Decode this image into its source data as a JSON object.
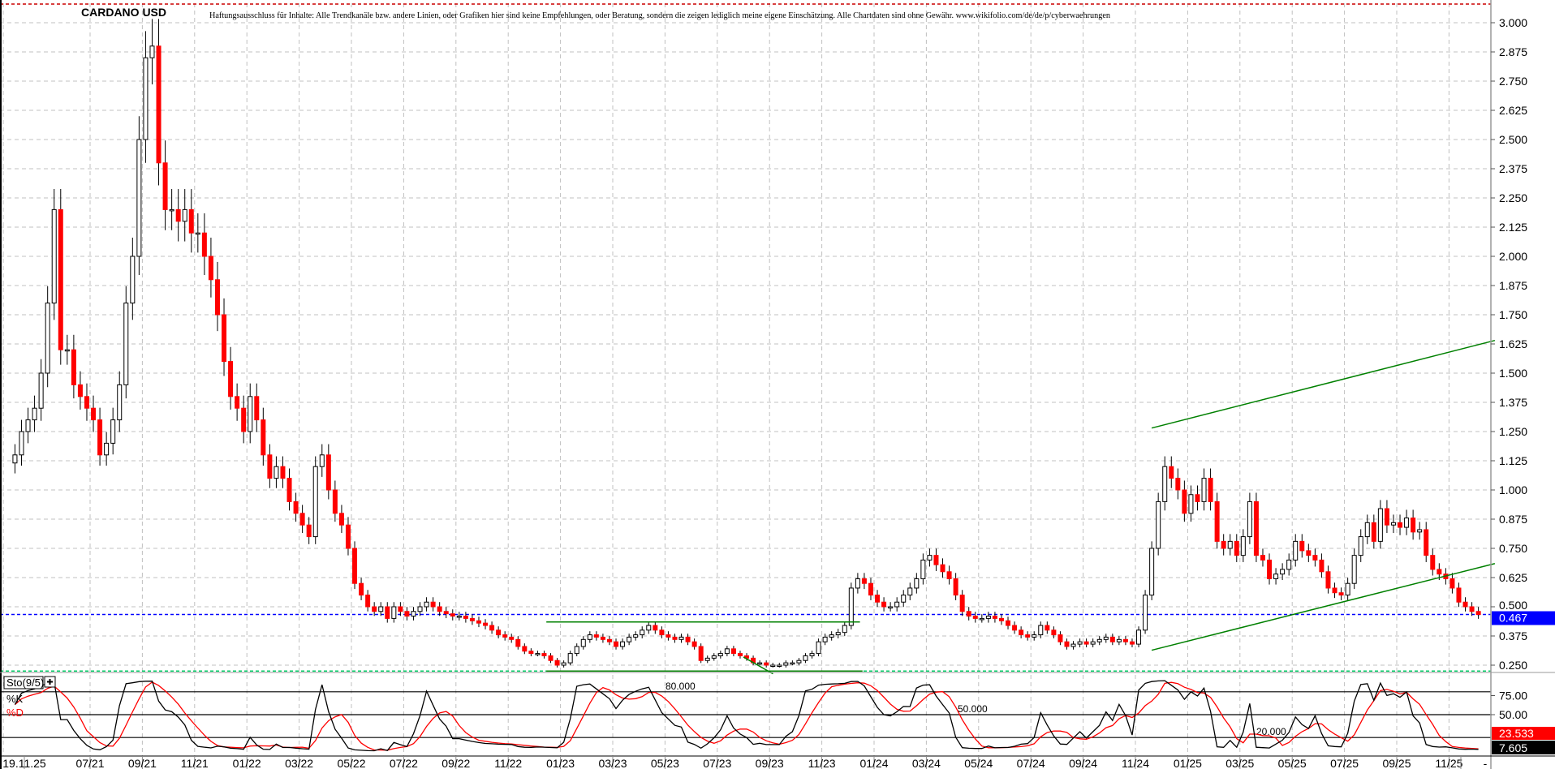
{
  "chart_data": {
    "type": "candlestick",
    "title": "CARDANO USD",
    "disclaimer": "Haftungsausschluss für Inhalte: Alle Trendkanäle bzw. andere Linien, oder Grafiken hier sind keine Empfehlungen, oder Beratung, sondern die zeigen lediglich meine eigene Einschätzung. Alle Chartdaten sind ohne Gewähr.  www.wikifolio.com/de/de/p/cyberwaehrungen",
    "ylim": [
      0.22,
      3.08
    ],
    "y_ticks": [
      "3.000",
      "2.875",
      "2.750",
      "2.625",
      "2.500",
      "2.375",
      "2.250",
      "2.125",
      "2.000",
      "1.875",
      "1.750",
      "1.625",
      "1.500",
      "1.375",
      "1.250",
      "1.125",
      "1.000",
      "0.875",
      "0.750",
      "0.625",
      "0.500",
      "0.375",
      "0.250"
    ],
    "x_ticks": [
      "19.11.25",
      "07/21",
      "09/21",
      "11/21",
      "01/22",
      "03/22",
      "05/22",
      "07/22",
      "09/22",
      "11/22",
      "01/23",
      "03/23",
      "05/23",
      "07/23",
      "09/23",
      "11/23",
      "01/24",
      "03/24",
      "05/24",
      "07/24",
      "09/24",
      "11/24",
      "01/25",
      "03/25",
      "05/25",
      "07/25",
      "09/25",
      "11/25"
    ],
    "x_tick_months": [
      "2021-05",
      "2021-07",
      "2021-09",
      "2021-11",
      "2022-01",
      "2022-03",
      "2022-05",
      "2022-07",
      "2022-09",
      "2022-11",
      "2023-01",
      "2023-03",
      "2023-05",
      "2023-07",
      "2023-09",
      "2023-11",
      "2024-01",
      "2024-03",
      "2024-05",
      "2024-07",
      "2024-09",
      "2024-11",
      "2025-01",
      "2025-03",
      "2025-05",
      "2025-07",
      "2025-09",
      "2025-11"
    ],
    "axis_dash": "-",
    "grid": true,
    "colors": {
      "up_body": "#ffffff",
      "down_body": "#ff0000",
      "outline": "#000000",
      "trendline": "#008000",
      "last_price": "#0000ff",
      "stoch_k": "#000000",
      "stoch_d": "#ff0000",
      "high_marker": "#cc0000",
      "low_marker": "#00cc66"
    },
    "last_price": {
      "value": 0.467,
      "label": "0.467"
    },
    "high_marker": 3.08,
    "low_marker": 0.225,
    "monthly_weekly_closes": [
      {
        "month": "2021-04",
        "closes": [
          1.15,
          1.25,
          1.3,
          1.35
        ]
      },
      {
        "month": "2021-05",
        "closes": [
          1.5,
          1.8,
          2.2,
          1.6
        ]
      },
      {
        "month": "2021-06",
        "closes": [
          1.6,
          1.45,
          1.4,
          1.35
        ]
      },
      {
        "month": "2021-07",
        "closes": [
          1.3,
          1.15,
          1.2,
          1.3
        ]
      },
      {
        "month": "2021-08",
        "closes": [
          1.45,
          1.8,
          2.0,
          2.5
        ]
      },
      {
        "month": "2021-09",
        "closes": [
          2.85,
          2.9,
          2.4,
          2.2
        ]
      },
      {
        "month": "2021-10",
        "closes": [
          2.2,
          2.15,
          2.2,
          2.1
        ]
      },
      {
        "month": "2021-11",
        "closes": [
          2.1,
          2.0,
          1.9,
          1.75
        ]
      },
      {
        "month": "2021-12",
        "closes": [
          1.55,
          1.4,
          1.35,
          1.25
        ]
      },
      {
        "month": "2022-01",
        "closes": [
          1.4,
          1.3,
          1.15,
          1.05
        ]
      },
      {
        "month": "2022-02",
        "closes": [
          1.1,
          1.05,
          0.95,
          0.9
        ]
      },
      {
        "month": "2022-03",
        "closes": [
          0.85,
          0.8,
          1.1,
          1.15
        ]
      },
      {
        "month": "2022-04",
        "closes": [
          1.0,
          0.9,
          0.85,
          0.75
        ]
      },
      {
        "month": "2022-05",
        "closes": [
          0.6,
          0.55,
          0.5,
          0.48
        ]
      },
      {
        "month": "2022-06",
        "closes": [
          0.5,
          0.45,
          0.5,
          0.48
        ]
      },
      {
        "month": "2022-07",
        "closes": [
          0.46,
          0.48,
          0.5,
          0.52
        ]
      },
      {
        "month": "2022-08",
        "closes": [
          0.5,
          0.48,
          0.47,
          0.46
        ]
      },
      {
        "month": "2022-09",
        "closes": [
          0.46,
          0.45,
          0.44,
          0.43
        ]
      },
      {
        "month": "2022-10",
        "closes": [
          0.42,
          0.4,
          0.38,
          0.37
        ]
      },
      {
        "month": "2022-11",
        "closes": [
          0.36,
          0.33,
          0.31,
          0.3
        ]
      },
      {
        "month": "2022-12",
        "closes": [
          0.3,
          0.29,
          0.27,
          0.25
        ]
      },
      {
        "month": "2023-01",
        "closes": [
          0.26,
          0.3,
          0.33,
          0.36
        ]
      },
      {
        "month": "2023-02",
        "closes": [
          0.38,
          0.37,
          0.36,
          0.35
        ]
      },
      {
        "month": "2023-03",
        "closes": [
          0.33,
          0.35,
          0.37,
          0.38
        ]
      },
      {
        "month": "2023-04",
        "closes": [
          0.4,
          0.42,
          0.4,
          0.38
        ]
      },
      {
        "month": "2023-05",
        "closes": [
          0.37,
          0.36,
          0.37,
          0.35
        ]
      },
      {
        "month": "2023-06",
        "closes": [
          0.33,
          0.27,
          0.28,
          0.29
        ]
      },
      {
        "month": "2023-07",
        "closes": [
          0.3,
          0.32,
          0.3,
          0.29
        ]
      },
      {
        "month": "2023-08",
        "closes": [
          0.28,
          0.26,
          0.26,
          0.25
        ]
      },
      {
        "month": "2023-09",
        "closes": [
          0.25,
          0.25,
          0.26,
          0.26
        ]
      },
      {
        "month": "2023-10",
        "closes": [
          0.27,
          0.29,
          0.3,
          0.35
        ]
      },
      {
        "month": "2023-11",
        "closes": [
          0.37,
          0.38,
          0.39,
          0.42
        ]
      },
      {
        "month": "2023-12",
        "closes": [
          0.58,
          0.62,
          0.6,
          0.55
        ]
      },
      {
        "month": "2024-01",
        "closes": [
          0.52,
          0.5,
          0.5,
          0.52
        ]
      },
      {
        "month": "2024-02",
        "closes": [
          0.55,
          0.58,
          0.62,
          0.7
        ]
      },
      {
        "month": "2024-03",
        "closes": [
          0.72,
          0.68,
          0.65,
          0.62
        ]
      },
      {
        "month": "2024-04",
        "closes": [
          0.55,
          0.48,
          0.46,
          0.45
        ]
      },
      {
        "month": "2024-05",
        "closes": [
          0.45,
          0.46,
          0.45,
          0.44
        ]
      },
      {
        "month": "2024-06",
        "closes": [
          0.42,
          0.4,
          0.38,
          0.37
        ]
      },
      {
        "month": "2024-07",
        "closes": [
          0.38,
          0.42,
          0.4,
          0.38
        ]
      },
      {
        "month": "2024-08",
        "closes": [
          0.35,
          0.33,
          0.34,
          0.35
        ]
      },
      {
        "month": "2024-09",
        "closes": [
          0.34,
          0.35,
          0.36,
          0.37
        ]
      },
      {
        "month": "2024-10",
        "closes": [
          0.35,
          0.36,
          0.35,
          0.34
        ]
      },
      {
        "month": "2024-11",
        "closes": [
          0.4,
          0.55,
          0.75,
          0.95
        ]
      },
      {
        "month": "2024-12",
        "closes": [
          1.1,
          1.05,
          1.0,
          0.9
        ]
      },
      {
        "month": "2025-01",
        "closes": [
          0.98,
          0.95,
          1.05,
          0.95
        ]
      },
      {
        "month": "2025-02",
        "closes": [
          0.78,
          0.75,
          0.78,
          0.72
        ]
      },
      {
        "month": "2025-03",
        "closes": [
          0.8,
          0.95,
          0.72,
          0.7
        ]
      },
      {
        "month": "2025-04",
        "closes": [
          0.62,
          0.64,
          0.66,
          0.7
        ]
      },
      {
        "month": "2025-05",
        "closes": [
          0.78,
          0.74,
          0.72,
          0.7
        ]
      },
      {
        "month": "2025-06",
        "closes": [
          0.65,
          0.58,
          0.56,
          0.55
        ]
      },
      {
        "month": "2025-07",
        "closes": [
          0.6,
          0.72,
          0.8,
          0.86
        ]
      },
      {
        "month": "2025-08",
        "closes": [
          0.78,
          0.92,
          0.85,
          0.86
        ]
      },
      {
        "month": "2025-09",
        "closes": [
          0.84,
          0.88,
          0.82,
          0.83
        ]
      },
      {
        "month": "2025-10",
        "closes": [
          0.72,
          0.66,
          0.64,
          0.62
        ]
      },
      {
        "month": "2025-11",
        "closes": [
          0.58,
          0.52,
          0.5,
          0.48
        ]
      },
      {
        "month": "2025-12",
        "closes": [
          0.467
        ]
      }
    ],
    "trendlines": [
      {
        "from": {
          "date": "2024-11-20",
          "price": 1.265
        },
        "to": {
          "date": "2025-12-24",
          "price": 1.64
        }
      },
      {
        "from": {
          "date": "2024-11-20",
          "price": 0.314
        },
        "to": {
          "date": "2025-12-24",
          "price": 0.685
        }
      },
      {
        "from": {
          "date": "2022-12-15",
          "price": 0.435
        },
        "to": {
          "date": "2023-12-15",
          "price": 0.435
        }
      },
      {
        "from": {
          "date": "2022-12-15",
          "price": 0.225
        },
        "to": {
          "date": "2023-12-18",
          "price": 0.225
        }
      },
      {
        "from": {
          "date": "2023-08-01",
          "price": 0.285
        },
        "to": {
          "date": "2023-09-05",
          "price": 0.213
        }
      }
    ],
    "stochastic": {
      "label": "Sto(9/5)",
      "expand_icon": "plus-icon",
      "k_label": "%K",
      "d_label": "%D",
      "k_period": 9,
      "d_period": 5,
      "ylim": [
        0,
        100
      ],
      "levels": [
        {
          "value": 80,
          "label": "80.000"
        },
        {
          "value": 50,
          "label": "50.000"
        },
        {
          "value": 20,
          "label": "20.000"
        }
      ],
      "y_ticks": [
        "75.00",
        "50.00"
      ],
      "y_tick_values": [
        75,
        50
      ],
      "current_d": "23.533",
      "current_k": "7.605"
    }
  }
}
